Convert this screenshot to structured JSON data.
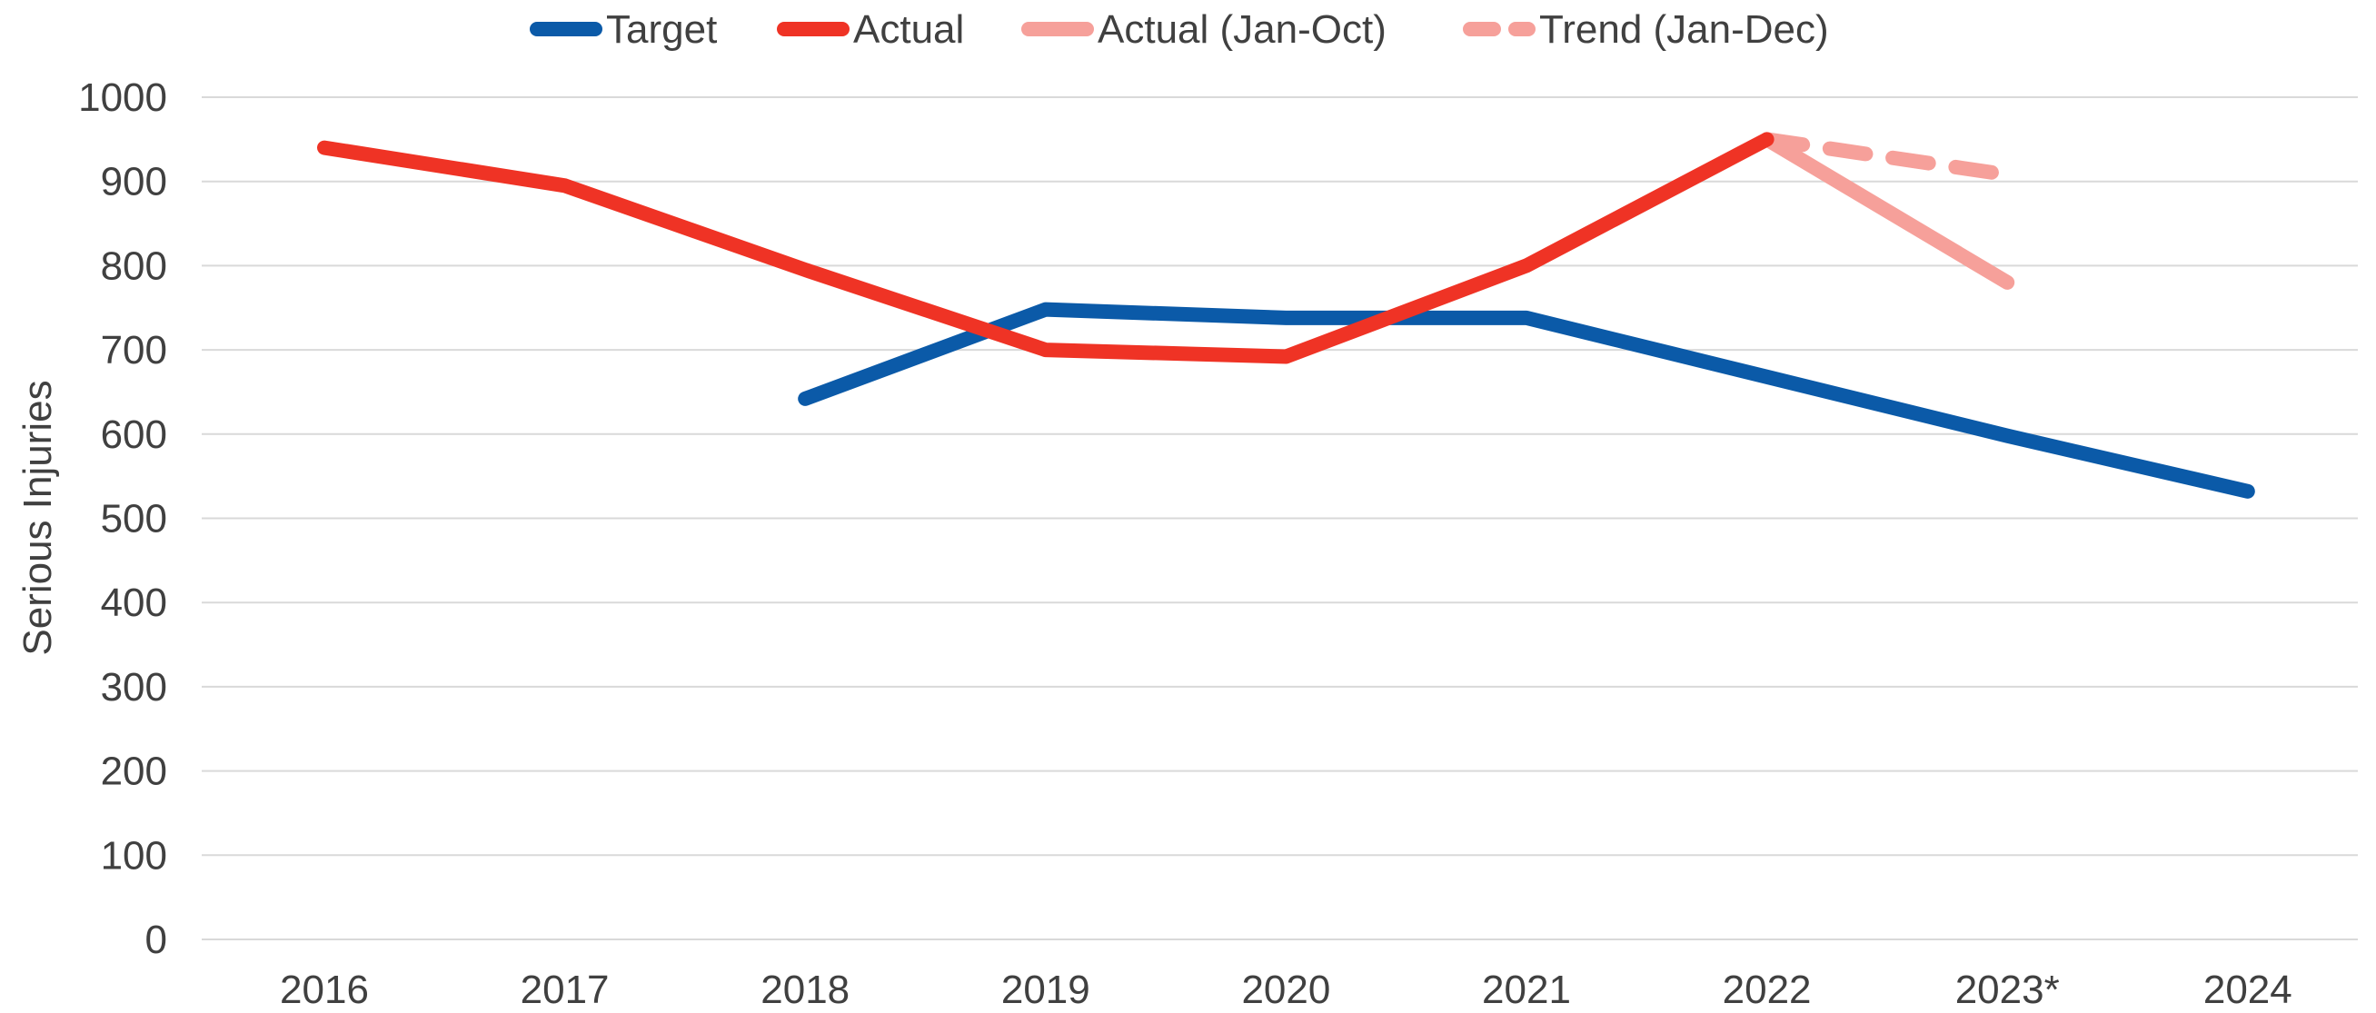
{
  "chart_data": {
    "type": "line",
    "categories": [
      "2016",
      "2017",
      "2018",
      "2019",
      "2020",
      "2021",
      "2022",
      "2023*",
      "2024"
    ],
    "ylabel": "Serious Injuries",
    "xlabel": "",
    "ylim": [
      0,
      1000
    ],
    "yticks": [
      0,
      100,
      200,
      300,
      400,
      500,
      600,
      700,
      800,
      900,
      1000
    ],
    "grid": "horizontal",
    "legend_position": "top",
    "series": [
      {
        "name": "Target",
        "color": "#0b5aa8",
        "dash": false,
        "values": [
          null,
          null,
          642,
          748,
          738,
          738,
          668,
          598,
          532
        ]
      },
      {
        "name": "Actual",
        "color": "#ef3325",
        "dash": false,
        "values": [
          940,
          895,
          795,
          700,
          692,
          800,
          950,
          null,
          null
        ]
      },
      {
        "name": "Actual (Jan-Oct)",
        "color": "#f6a09a",
        "dash": false,
        "values": [
          null,
          null,
          null,
          null,
          null,
          null,
          950,
          780,
          null
        ]
      },
      {
        "name": "Trend (Jan-Dec)",
        "color": "#f6a09a",
        "dash": true,
        "values": [
          null,
          null,
          null,
          null,
          null,
          null,
          950,
          908,
          null
        ]
      }
    ]
  }
}
